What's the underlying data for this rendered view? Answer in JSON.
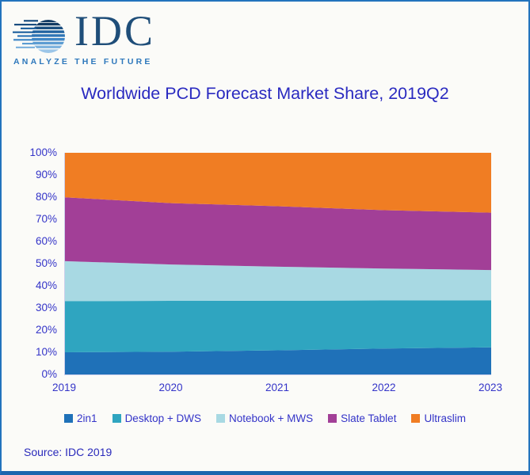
{
  "logo": {
    "text": "IDC",
    "tagline": "ANALYZE THE FUTURE"
  },
  "title": "Worldwide PCD Forecast Market Share, 2019Q2",
  "source": "Source: IDC 2019",
  "colors": {
    "text": "#3434C8",
    "title": "#2A2AC0",
    "source": "#2A2ABB",
    "border": "#2273BD",
    "border_bottom": "#1C66AE",
    "logo_text": "#1F4E79",
    "tagline": "#2E78BC"
  },
  "chart_data": {
    "type": "area",
    "stacked": true,
    "stack_total": 100,
    "title": "Worldwide PCD Forecast Market Share, 2019Q2",
    "xlabel": "",
    "ylabel": "",
    "x": [
      "2019",
      "2020",
      "2021",
      "2022",
      "2023"
    ],
    "series": [
      {
        "name": "2in1",
        "color": "#1F71B8",
        "values": [
          10.0,
          10.3,
          10.9,
          11.7,
          12.2
        ]
      },
      {
        "name": "Desktop + DWS",
        "color": "#2FA5C0",
        "values": [
          23.1,
          22.9,
          22.4,
          21.7,
          21.3
        ]
      },
      {
        "name": "Notebook + MWS",
        "color": "#A8D9E3",
        "values": [
          18.0,
          16.4,
          15.3,
          14.4,
          13.6
        ]
      },
      {
        "name": "Slate Tablet",
        "color": "#A23F97",
        "values": [
          28.8,
          27.7,
          27.3,
          26.3,
          25.9
        ]
      },
      {
        "name": "Ultraslim",
        "color": "#F07D23",
        "values": [
          20.1,
          22.7,
          24.1,
          25.9,
          27.0
        ]
      }
    ],
    "yticks": [
      "0%",
      "10%",
      "20%",
      "30%",
      "40%",
      "50%",
      "60%",
      "70%",
      "80%",
      "90%",
      "100%"
    ],
    "ylim": [
      0,
      100
    ],
    "grid": false,
    "legend_position": "bottom"
  }
}
